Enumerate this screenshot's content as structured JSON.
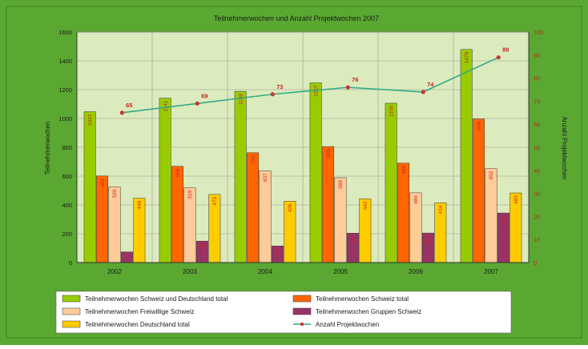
{
  "chart_data": {
    "type": "bar",
    "title": "Teilnehmerwochen und Anzahl Projektwochen  2007",
    "ylabel": "Teilnehmerwochen",
    "y2label": "Anzahl Projektwochen",
    "ylim": [
      0,
      1600
    ],
    "y2lim": [
      0,
      100
    ],
    "yticks": [
      "0",
      "200",
      "400",
      "600",
      "800",
      "1000",
      "1200",
      "1400",
      "1600"
    ],
    "y2ticks": [
      "0",
      "10",
      "20",
      "30",
      "40",
      "50",
      "60",
      "70",
      "80",
      "90",
      "100"
    ],
    "grid": true,
    "legend_position": "bottom",
    "categories": [
      "2002",
      "2003",
      "2004",
      "2005",
      "2006",
      "2007"
    ],
    "series": [
      {
        "name": "Teilnehmerwochen Schweiz und Deutschland total",
        "type": "bar",
        "axis": "left",
        "color": "#99cc00",
        "values": [
          1047,
          1141,
          1188,
          1247,
          1106,
          1479
        ],
        "labels": [
          "1047",
          "1141",
          "1188",
          "1247",
          "1106",
          "1479"
        ]
      },
      {
        "name": "Teilnehmerwochen Schweiz total",
        "type": "bar",
        "axis": "left",
        "color": "#ff6600",
        "values": [
          601,
          668,
          762,
          805,
          690,
          996
        ],
        "labels": [
          "601",
          "668",
          "762",
          "805",
          "690",
          "996"
        ]
      },
      {
        "name": "Teilnehmerwochen Freiwillige Schweiz",
        "type": "bar",
        "axis": "left",
        "color": "#ffcc99",
        "values": [
          526,
          519,
          637,
          589,
          484,
          652
        ],
        "labels": [
          "526",
          "519",
          "637",
          "589",
          "484",
          "652"
        ]
      },
      {
        "name": "Teilnehmerwochen Gruppen Schweiz",
        "type": "bar",
        "axis": "left",
        "color": "#993366",
        "values": [
          74,
          149,
          115,
          204,
          205,
          344
        ],
        "labels": [
          "74",
          "149",
          "115",
          "204",
          "205",
          "344"
        ]
      },
      {
        "name": "Teilnehmerwochen Deutschland total",
        "type": "bar",
        "axis": "left",
        "color": "#ffcc00",
        "values": [
          446,
          473,
          426,
          442,
          414,
          483
        ],
        "labels": [
          "446",
          "473",
          "426",
          "442",
          "414",
          "483"
        ]
      },
      {
        "name": "Anzahl Projektwochen",
        "type": "line",
        "axis": "right",
        "color": "#33aa88",
        "marker_color": "#cc3333",
        "values": [
          65,
          69,
          73,
          76,
          74,
          89
        ],
        "labels": [
          "65",
          "69",
          "73",
          "76",
          "74",
          "89"
        ]
      }
    ]
  },
  "colors": {
    "background": "#5aa832",
    "plot_area": "#dcebbd",
    "grid": "#9a9a9a",
    "label_text": "#cc2222"
  }
}
